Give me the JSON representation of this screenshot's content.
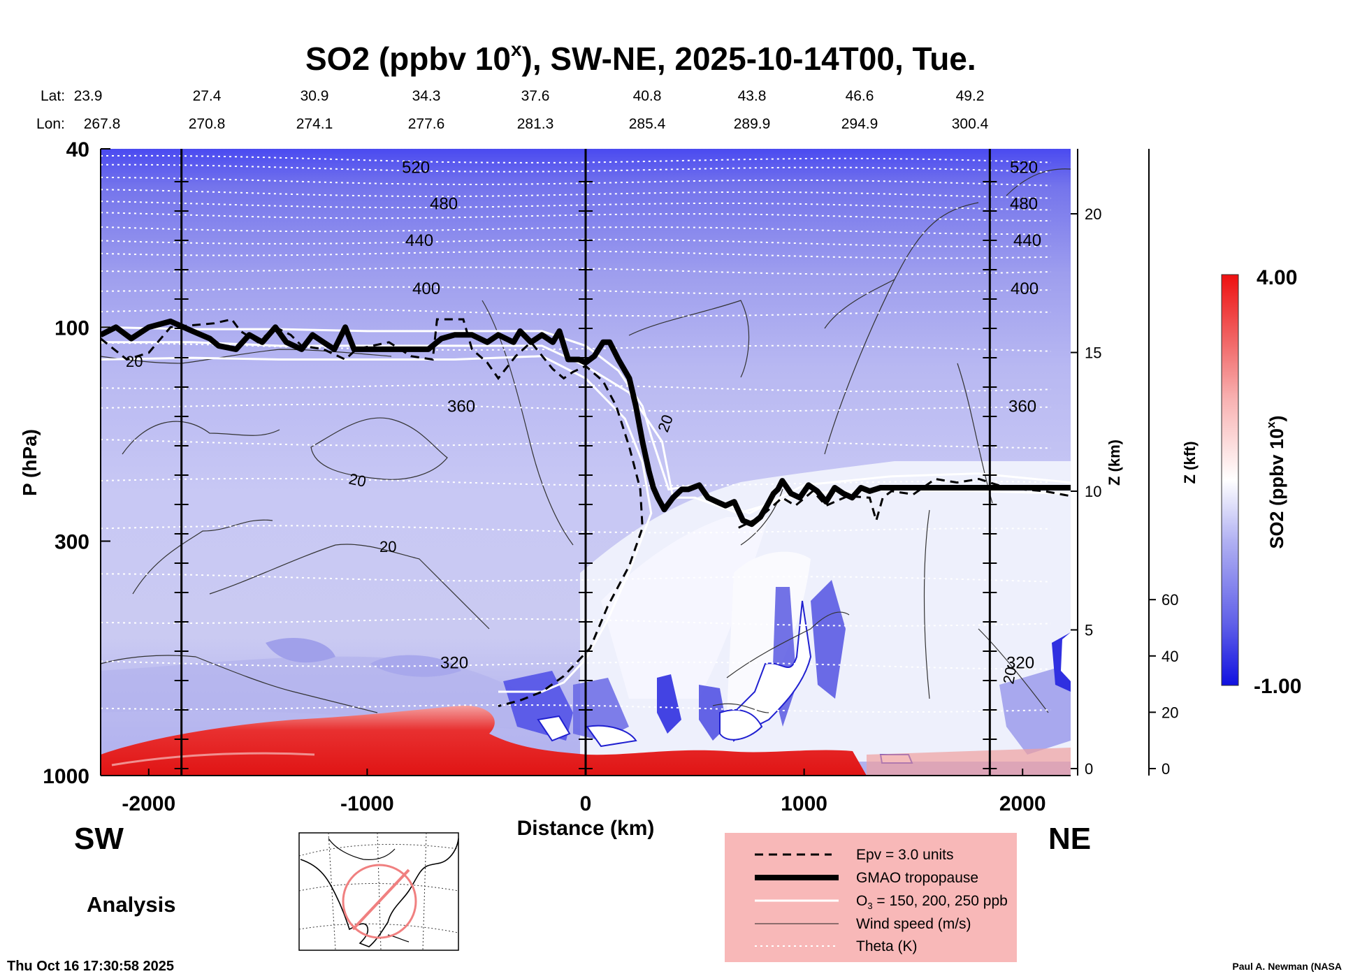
{
  "chart_data": {
    "type": "heatmap",
    "title_main": "SO2 (ppbv 10",
    "title_sup": "x",
    "title_rest": "), SW-NE, 2025-10-14T00, Tue.",
    "xlabel": "Distance (km)",
    "ylabel": "P (hPa)",
    "y2label": "Z (km)",
    "y3label": "Z (kft)",
    "x_ticks": [
      -2000,
      -1000,
      0,
      1000,
      2000
    ],
    "x_tick_labels": [
      "-2000",
      "-1000",
      "0",
      "1000",
      "2000"
    ],
    "xlim": [
      -2220,
      2220
    ],
    "y_ticks": [
      40,
      100,
      300,
      1000
    ],
    "y_tick_labels": [
      "40",
      "100",
      "300",
      "1000"
    ],
    "ylim": [
      1000,
      40
    ],
    "yscale": "log",
    "z_km_ticks": [
      0,
      5,
      10,
      15,
      20
    ],
    "z_km_labels": [
      "0",
      "5",
      "10",
      "15",
      "20"
    ],
    "z_kft_ticks": [
      0,
      20,
      40,
      60
    ],
    "z_kft_labels": [
      "0",
      "20",
      "40",
      "60"
    ],
    "lat_label": "Lat:",
    "lon_label": "Lon:",
    "lat": [
      "23.9",
      "27.4",
      "30.9",
      "34.3",
      "37.6",
      "40.8",
      "43.8",
      "46.6",
      "49.2"
    ],
    "lon": [
      "267.8",
      "270.8",
      "274.1",
      "277.6",
      "281.3",
      "285.4",
      "289.9",
      "294.9",
      "300.4"
    ],
    "vertical_lines_km": [
      -1850,
      0,
      1850
    ],
    "colorbar": {
      "min": "-1.00",
      "max": "4.00",
      "label": "SO2 (ppbv 10",
      "label_sup": "x",
      "label_end": ")"
    },
    "tropopause_p": [
      [
        -2220,
        104
      ],
      [
        -2150,
        100
      ],
      [
        -2080,
        106
      ],
      [
        -2000,
        100
      ],
      [
        -1900,
        97
      ],
      [
        -1800,
        102
      ],
      [
        -1720,
        106
      ],
      [
        -1680,
        110
      ],
      [
        -1600,
        112
      ],
      [
        -1540,
        104
      ],
      [
        -1480,
        108
      ],
      [
        -1420,
        100
      ],
      [
        -1370,
        108
      ],
      [
        -1300,
        112
      ],
      [
        -1250,
        104
      ],
      [
        -1200,
        108
      ],
      [
        -1150,
        112
      ],
      [
        -1100,
        100
      ],
      [
        -1060,
        112
      ],
      [
        -1000,
        112
      ],
      [
        -900,
        112
      ],
      [
        -800,
        112
      ],
      [
        -720,
        112
      ],
      [
        -660,
        106
      ],
      [
        -600,
        104
      ],
      [
        -520,
        104
      ],
      [
        -450,
        108
      ],
      [
        -400,
        104
      ],
      [
        -330,
        108
      ],
      [
        -300,
        102
      ],
      [
        -250,
        108
      ],
      [
        -200,
        104
      ],
      [
        -150,
        108
      ],
      [
        -120,
        102
      ],
      [
        -80,
        118
      ],
      [
        -30,
        118
      ],
      [
        0,
        120
      ],
      [
        40,
        116
      ],
      [
        80,
        108
      ],
      [
        110,
        108
      ],
      [
        150,
        118
      ],
      [
        200,
        130
      ],
      [
        230,
        150
      ],
      [
        260,
        180
      ],
      [
        290,
        210
      ],
      [
        310,
        228
      ],
      [
        330,
        240
      ],
      [
        360,
        255
      ],
      [
        400,
        240
      ],
      [
        440,
        230
      ],
      [
        470,
        230
      ],
      [
        520,
        225
      ],
      [
        560,
        240
      ],
      [
        600,
        245
      ],
      [
        640,
        250
      ],
      [
        680,
        245
      ],
      [
        720,
        270
      ],
      [
        760,
        275
      ],
      [
        800,
        265
      ],
      [
        830,
        250
      ],
      [
        860,
        235
      ],
      [
        880,
        230
      ],
      [
        900,
        220
      ],
      [
        940,
        235
      ],
      [
        980,
        240
      ],
      [
        1020,
        225
      ],
      [
        1060,
        232
      ],
      [
        1100,
        245
      ],
      [
        1140,
        228
      ],
      [
        1180,
        235
      ],
      [
        1220,
        240
      ],
      [
        1260,
        228
      ],
      [
        1300,
        232
      ],
      [
        1350,
        228
      ],
      [
        1400,
        228
      ],
      [
        1500,
        228
      ],
      [
        1600,
        228
      ],
      [
        1700,
        228
      ],
      [
        1800,
        228
      ],
      [
        1900,
        228
      ],
      [
        2000,
        228
      ],
      [
        2100,
        228
      ],
      [
        2220,
        228
      ]
    ],
    "o3_contours_p": [
      [
        [
          -2220,
          100
        ],
        [
          -1800,
          101
        ],
        [
          -1400,
          101
        ],
        [
          -1000,
          102
        ],
        [
          -600,
          102
        ],
        [
          -200,
          102
        ],
        [
          0,
          110
        ],
        [
          150,
          125
        ],
        [
          260,
          150
        ],
        [
          300,
          175
        ],
        [
          380,
          230
        ],
        [
          500,
          225
        ],
        [
          600,
          245
        ],
        [
          750,
          260
        ],
        [
          1000,
          225
        ],
        [
          1400,
          215
        ],
        [
          1800,
          212
        ],
        [
          2220,
          222
        ]
      ],
      [
        [
          -2220,
          108
        ],
        [
          -1800,
          108
        ],
        [
          -1400,
          110
        ],
        [
          -1000,
          110
        ],
        [
          -600,
          110
        ],
        [
          -200,
          110
        ],
        [
          0,
          122
        ],
        [
          200,
          140
        ],
        [
          350,
          180
        ],
        [
          400,
          240
        ],
        [
          500,
          240
        ],
        [
          700,
          260
        ],
        [
          1000,
          235
        ],
        [
          1400,
          230
        ],
        [
          1800,
          232
        ],
        [
          2220,
          235
        ]
      ],
      [
        [
          -2220,
          118
        ],
        [
          -1800,
          117
        ],
        [
          -1400,
          118
        ],
        [
          -1000,
          118
        ],
        [
          -600,
          118
        ],
        [
          -200,
          116
        ],
        [
          0,
          130
        ],
        [
          180,
          160
        ],
        [
          260,
          200
        ],
        [
          300,
          260
        ],
        [
          200,
          350
        ],
        [
          100,
          450
        ],
        [
          0,
          550
        ],
        [
          -100,
          620
        ],
        [
          -200,
          650
        ],
        [
          -400,
          650
        ]
      ]
    ],
    "epv_p": [
      [
        -2220,
        106
      ],
      [
        -2100,
        118
      ],
      [
        -2000,
        114
      ],
      [
        -1900,
        100
      ],
      [
        -1700,
        98
      ],
      [
        -1620,
        96
      ],
      [
        -1580,
        102
      ],
      [
        -1500,
        108
      ],
      [
        -1420,
        100
      ],
      [
        -1350,
        104
      ],
      [
        -1300,
        110
      ],
      [
        -1200,
        112
      ],
      [
        -1100,
        118
      ],
      [
        -1050,
        112
      ],
      [
        -900,
        108
      ],
      [
        -800,
        116
      ],
      [
        -700,
        118
      ],
      [
        -680,
        96
      ],
      [
        -620,
        96
      ],
      [
        -560,
        96
      ],
      [
        -520,
        112
      ],
      [
        -450,
        120
      ],
      [
        -400,
        130
      ],
      [
        -320,
        116
      ],
      [
        -250,
        108
      ],
      [
        -150,
        124
      ],
      [
        -100,
        130
      ],
      [
        -60,
        126
      ],
      [
        0,
        122
      ],
      [
        80,
        132
      ],
      [
        140,
        150
      ],
      [
        200,
        185
      ],
      [
        250,
        230
      ],
      [
        260,
        280
      ],
      [
        200,
        340
      ],
      [
        100,
        420
      ],
      [
        20,
        520
      ],
      [
        -100,
        600
      ],
      [
        -200,
        650
      ],
      [
        -300,
        680
      ],
      [
        -400,
        700
      ]
    ],
    "epv_p2": [
      [
        700,
        280
      ],
      [
        800,
        265
      ],
      [
        900,
        240
      ],
      [
        960,
        250
      ],
      [
        1040,
        232
      ],
      [
        1100,
        250
      ],
      [
        1200,
        238
      ],
      [
        1300,
        240
      ],
      [
        1330,
        270
      ],
      [
        1360,
        240
      ],
      [
        1400,
        232
      ],
      [
        1500,
        236
      ],
      [
        1600,
        218
      ],
      [
        1700,
        222
      ],
      [
        1800,
        218
      ],
      [
        1900,
        226
      ],
      [
        2000,
        230
      ],
      [
        2100,
        232
      ],
      [
        2220,
        238
      ]
    ],
    "theta_levels": [
      {
        "label": "520",
        "p": 44
      },
      {
        "label": "480",
        "p": 53
      },
      {
        "label": "440",
        "p": 64
      },
      {
        "label": "400",
        "p": 82
      },
      {
        "label": "360",
        "p": 150
      },
      {
        "label": "320",
        "p": 560
      }
    ],
    "theta_lines_p": [
      42,
      44,
      47,
      50,
      53,
      56,
      60,
      64,
      68,
      74,
      82,
      92,
      110,
      135,
      150,
      180,
      220,
      280,
      360,
      450,
      560,
      700
    ],
    "wind_label": "20",
    "analysis_label": "Analysis",
    "sw_label": "SW",
    "ne_label": "NE",
    "legend": [
      {
        "label": "Epv = 3.0 units",
        "style": "dashed"
      },
      {
        "label": "GMAO tropopause",
        "style": "thick"
      },
      {
        "label": "O3 = 150, 200, 250 ppb",
        "style": "white"
      },
      {
        "label": "Wind speed (m/s)",
        "style": "thin"
      },
      {
        "label": "Theta (K)",
        "style": "dotted"
      }
    ],
    "legend_o3_prefix": "O",
    "legend_o3_sub": "3",
    "legend_o3_suffix": " = 150, 200, 250 ppb",
    "footer_left": "Thu Oct 16 17:30:58 2025",
    "footer_right": "Paul A. Newman (NASA",
    "colors": {
      "background_blue": "#c8c8f0",
      "upper_blue": "#7070e8",
      "surface_red": "#e01010",
      "white": "#ffffff",
      "legend_bg": "#f8b8b8"
    }
  }
}
